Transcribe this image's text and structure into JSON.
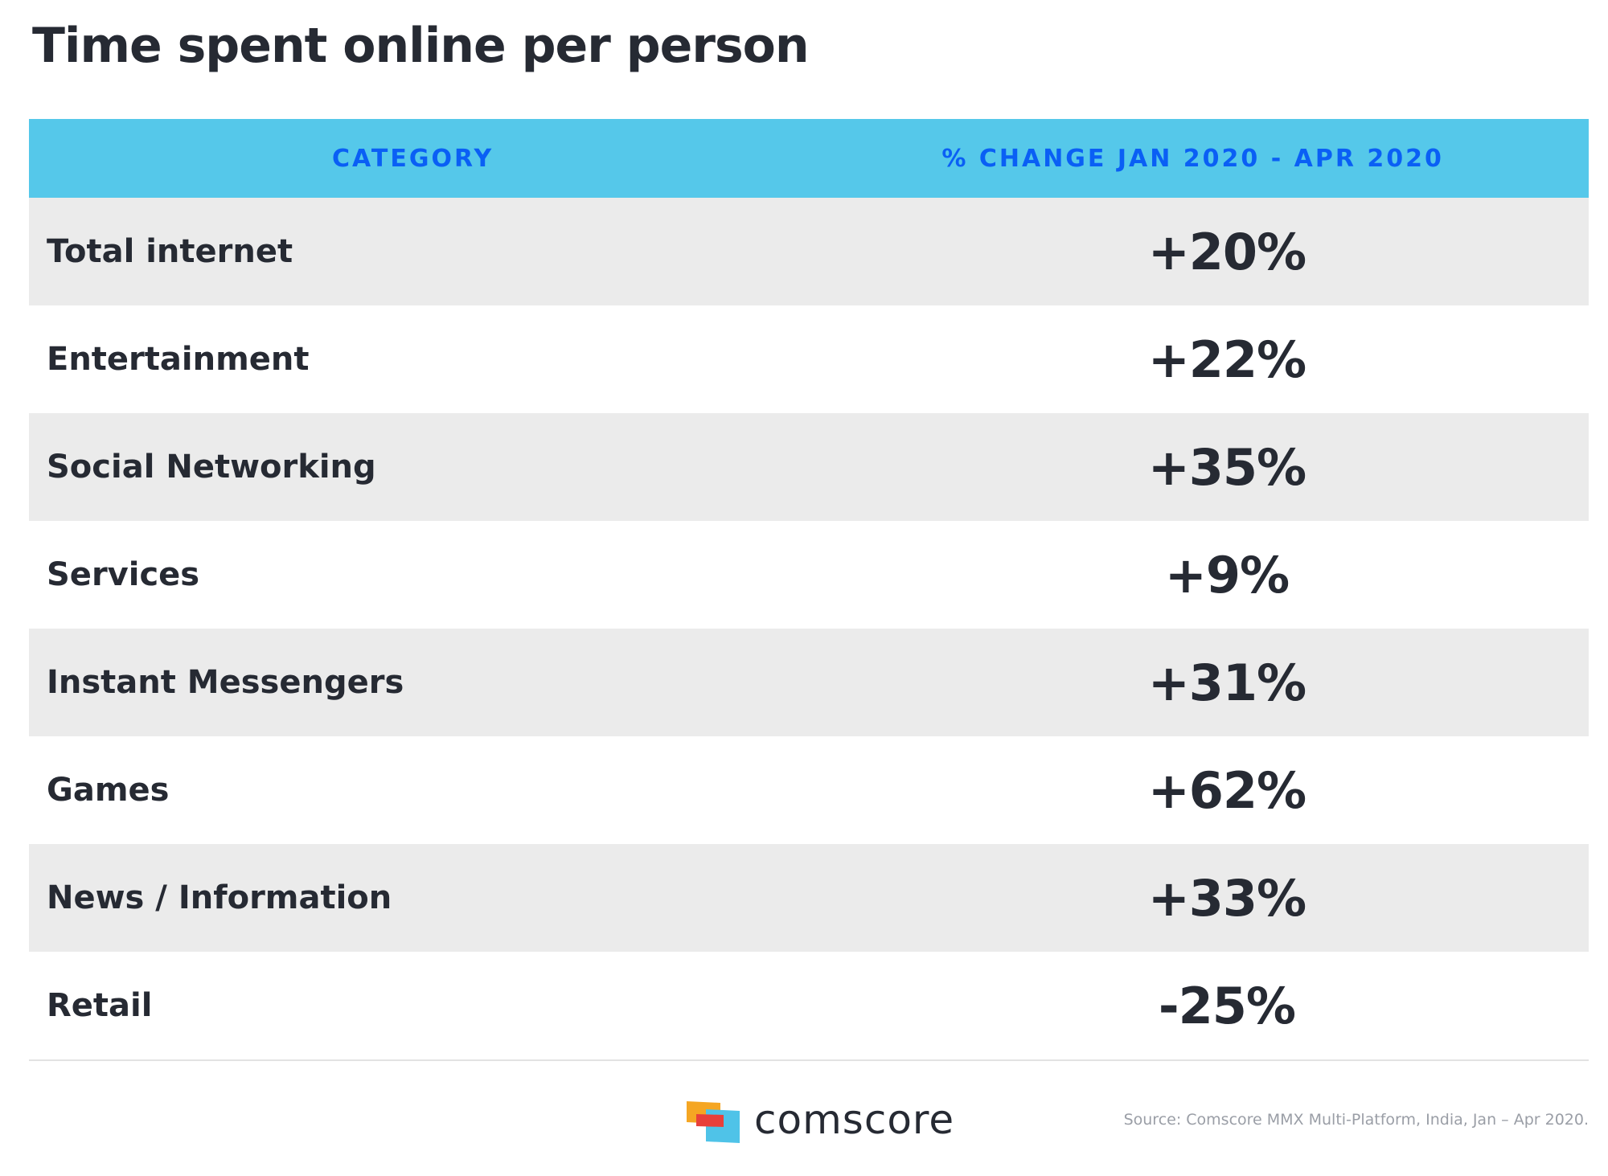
{
  "title": "Time spent online per person",
  "chart_data": {
    "type": "table",
    "columns": [
      "CATEGORY",
      "% CHANGE JAN 2020 - APR 2020"
    ],
    "rows": [
      {
        "category": "Total internet",
        "change": "+20%",
        "value": 20
      },
      {
        "category": "Entertainment",
        "change": "+22%",
        "value": 22
      },
      {
        "category": "Social Networking",
        "change": "+35%",
        "value": 35
      },
      {
        "category": "Services",
        "change": "+9%",
        "value": 9
      },
      {
        "category": "Instant Messengers",
        "change": "+31%",
        "value": 31
      },
      {
        "category": "Games",
        "change": "+62%",
        "value": 62
      },
      {
        "category": "News / Information",
        "change": "+33%",
        "value": 33
      },
      {
        "category": "Retail",
        "change": "-25%",
        "value": -25
      }
    ]
  },
  "footer": {
    "brand": "comscore",
    "source": "Source: Comscore MMX Multi-Platform, India, Jan – Apr 2020."
  },
  "colors": {
    "header_bg": "#55c8ea",
    "header_text": "#0a5ff5",
    "row_shade": "#ebebeb",
    "text": "#262a33"
  }
}
